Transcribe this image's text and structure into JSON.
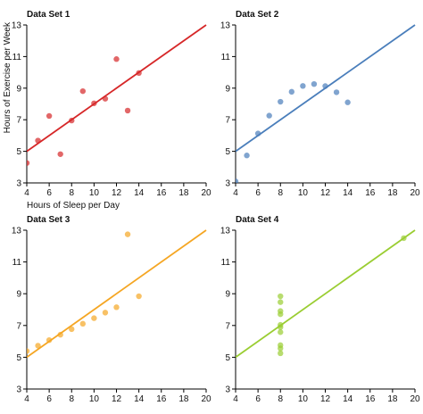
{
  "chart_data": [
    {
      "type": "scatter",
      "title": "Data Set 1",
      "xlabel": "Hours of Sleep per Day",
      "ylabel": "Hours of Exercise per Week",
      "xlim": [
        4,
        20
      ],
      "ylim": [
        3,
        13
      ],
      "xticks": [
        "4",
        "6",
        "8",
        "10",
        "12",
        "14",
        "16",
        "18",
        "20"
      ],
      "yticks": [
        "3",
        "5",
        "7",
        "9",
        "11",
        "13"
      ],
      "color": "#d62728",
      "grid": false,
      "series": [
        {
          "x": [
            4,
            5,
            6,
            7,
            8,
            9,
            10,
            11,
            12,
            13,
            14
          ],
          "y": [
            4.26,
            5.68,
            7.24,
            4.82,
            6.95,
            8.81,
            8.04,
            8.33,
            10.84,
            7.58,
            9.96
          ]
        }
      ],
      "trendline": {
        "x": [
          4,
          20
        ],
        "y": [
          5.0,
          13.0
        ]
      }
    },
    {
      "type": "scatter",
      "title": "Data Set 2",
      "xlabel": "",
      "ylabel": "",
      "xlim": [
        4,
        20
      ],
      "ylim": [
        3,
        13
      ],
      "xticks": [
        "4",
        "6",
        "8",
        "10",
        "12",
        "14",
        "16",
        "18",
        "20"
      ],
      "yticks": [
        "3",
        "5",
        "7",
        "9",
        "11",
        "13"
      ],
      "color": "#4a7ebb",
      "grid": false,
      "series": [
        {
          "x": [
            4,
            5,
            6,
            7,
            8,
            9,
            10,
            11,
            12,
            13,
            14
          ],
          "y": [
            3.1,
            4.74,
            6.13,
            7.26,
            8.14,
            8.77,
            9.14,
            9.26,
            9.13,
            8.74,
            8.1
          ]
        }
      ],
      "trendline": {
        "x": [
          4,
          20
        ],
        "y": [
          5.0,
          13.0
        ]
      }
    },
    {
      "type": "scatter",
      "title": "Data Set 3",
      "xlabel": "",
      "ylabel": "",
      "xlim": [
        4,
        20
      ],
      "ylim": [
        3,
        13
      ],
      "xticks": [
        "4",
        "6",
        "8",
        "10",
        "12",
        "14",
        "16",
        "18",
        "20"
      ],
      "yticks": [
        "3",
        "5",
        "7",
        "9",
        "11",
        "13"
      ],
      "color": "#f5a623",
      "grid": false,
      "series": [
        {
          "x": [
            4,
            5,
            6,
            7,
            8,
            9,
            10,
            11,
            12,
            13,
            14
          ],
          "y": [
            5.39,
            5.73,
            6.08,
            6.42,
            6.77,
            7.11,
            7.46,
            7.81,
            8.15,
            12.74,
            8.84
          ]
        }
      ],
      "trendline": {
        "x": [
          4,
          20
        ],
        "y": [
          5.0,
          13.0
        ]
      }
    },
    {
      "type": "scatter",
      "title": "Data Set 4",
      "xlabel": "",
      "ylabel": "",
      "xlim": [
        4,
        20
      ],
      "ylim": [
        3,
        13
      ],
      "xticks": [
        "4",
        "6",
        "8",
        "10",
        "12",
        "14",
        "16",
        "18",
        "20"
      ],
      "yticks": [
        "3",
        "5",
        "7",
        "9",
        "11",
        "13"
      ],
      "color": "#9acd32",
      "grid": false,
      "series": [
        {
          "x": [
            8,
            8,
            8,
            8,
            8,
            8,
            8,
            8,
            8,
            8,
            19
          ],
          "y": [
            6.58,
            5.76,
            7.71,
            8.84,
            8.47,
            7.04,
            5.25,
            5.56,
            7.91,
            6.89,
            12.5
          ]
        }
      ],
      "trendline": {
        "x": [
          4,
          20
        ],
        "y": [
          5.0,
          13.0
        ]
      }
    }
  ]
}
